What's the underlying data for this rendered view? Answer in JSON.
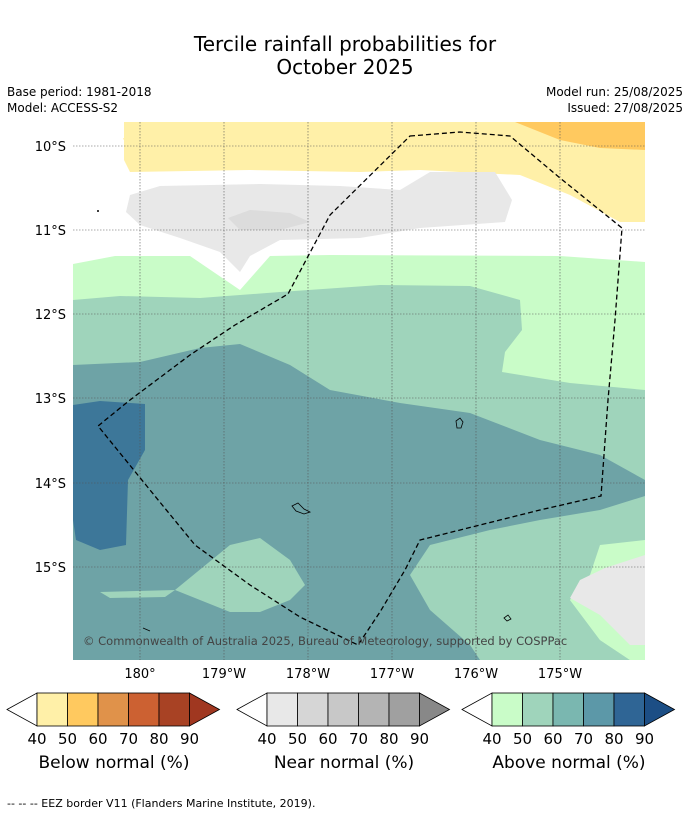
{
  "title": "Tercile rainfall probabilities for",
  "title_line2": "October 2025",
  "meta": {
    "base_period": "Base period: 1981-2018",
    "model": "Model: ACCESS-S2",
    "model_run": "Model run: 25/08/2025",
    "issued": "Issued: 27/08/2025"
  },
  "map": {
    "lat_labels": [
      "10°S",
      "11°S",
      "12°S",
      "13°S",
      "14°S",
      "15°S"
    ],
    "lon_labels": [
      "180°",
      "179°W",
      "178°W",
      "177°W",
      "176°W",
      "175°W"
    ],
    "credit": "© Commonwealth of Australia 2025, Bureau of Meteorology, supported by COSPPac"
  },
  "colorbars": [
    {
      "label": "Below normal (%)",
      "ticks": [
        "40",
        "50",
        "60",
        "70",
        "80",
        "90"
      ],
      "colors": [
        "#fff0a8",
        "#ffc95f",
        "#e0924a",
        "#cc6132",
        "#a84224",
        "#a03720"
      ]
    },
    {
      "label": "Near normal (%)",
      "ticks": [
        "40",
        "50",
        "60",
        "70",
        "80",
        "90"
      ],
      "colors": [
        "#e8e8e8",
        "#d6d6d6",
        "#c8c8c8",
        "#b4b4b4",
        "#a0a0a0",
        "#888888"
      ]
    },
    {
      "label": "Above normal (%)",
      "ticks": [
        "40",
        "50",
        "60",
        "70",
        "80",
        "90"
      ],
      "colors": [
        "#c9fcc8",
        "#9fd4bb",
        "#7ab7b0",
        "#5c98a8",
        "#2f6595",
        "#1c4e85"
      ]
    }
  ],
  "footer": "--  --  -- EEZ border V11 (Flanders Marine Institute, 2019)."
}
